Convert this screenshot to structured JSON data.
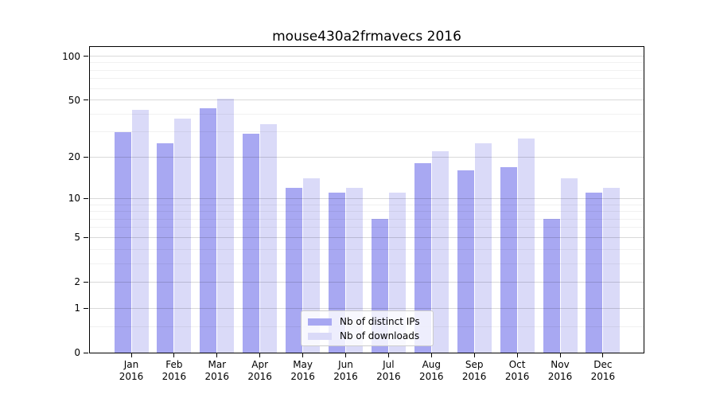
{
  "chart_data": {
    "type": "bar",
    "title": "mouse430a2frmavecs 2016",
    "year_label": "2016",
    "categories": [
      "Jan",
      "Feb",
      "Mar",
      "Apr",
      "May",
      "Jun",
      "Jul",
      "Aug",
      "Sep",
      "Oct",
      "Nov",
      "Dec"
    ],
    "series": [
      {
        "name": "Nb of distinct IPs",
        "color": "#a8a8f2",
        "values": [
          30,
          25,
          44,
          29,
          12,
          11,
          7,
          18,
          16,
          17,
          7,
          11
        ]
      },
      {
        "name": "Nb of downloads",
        "color": "#dadaf8",
        "values": [
          43,
          37,
          51,
          34,
          14,
          12,
          11,
          22,
          25,
          27,
          14,
          12
        ]
      }
    ],
    "xlabel": "",
    "ylabel": "",
    "yscale": "log1p",
    "yticks": [
      0,
      1,
      2,
      5,
      10,
      20,
      50,
      100
    ],
    "yticks_minor": [
      0.5,
      3,
      4,
      6,
      7,
      8,
      9,
      30,
      40,
      60,
      70,
      80,
      90
    ],
    "ylim": [
      0,
      117
    ],
    "grid": "horizontal-over-bars",
    "legend_position": "lower-center",
    "colors": {
      "grid_major": "rgba(0,0,0,0.15)",
      "grid_minor": "rgba(0,0,0,0.055)",
      "spine": "#000000",
      "background": "#ffffff"
    }
  }
}
